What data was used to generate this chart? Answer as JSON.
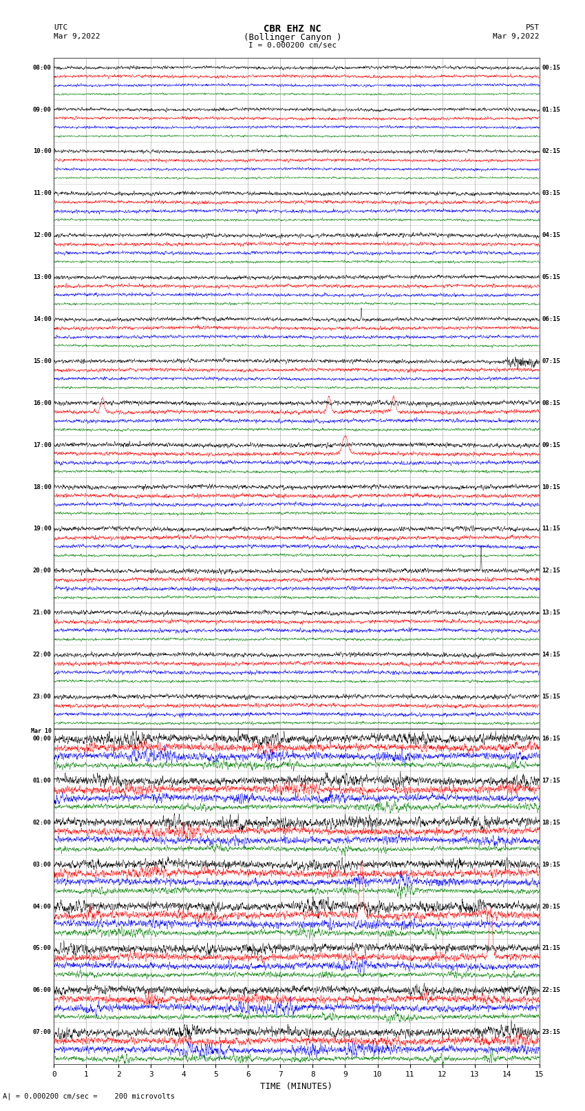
{
  "title_line1": "CBR EHZ NC",
  "title_line2": "(Bollinger Canyon )",
  "title_line3": "I = 0.000200 cm/sec",
  "left_header_line1": "UTC",
  "left_header_line2": "Mar 9,2022",
  "right_header_line1": "PST",
  "right_header_line2": "Mar 9,2022",
  "bottom_label": "TIME (MINUTES)",
  "bottom_note": "A| = 0.000200 cm/sec =    200 microvolts",
  "utc_labels": [
    "08:00",
    "09:00",
    "10:00",
    "11:00",
    "12:00",
    "13:00",
    "14:00",
    "15:00",
    "16:00",
    "17:00",
    "18:00",
    "19:00",
    "20:00",
    "21:00",
    "22:00",
    "23:00",
    "Mar 10\n00:00",
    "01:00",
    "02:00",
    "03:00",
    "04:00",
    "05:00",
    "06:00",
    "07:00"
  ],
  "pst_labels": [
    "00:15",
    "01:15",
    "02:15",
    "03:15",
    "04:15",
    "05:15",
    "06:15",
    "07:15",
    "08:15",
    "09:15",
    "10:15",
    "11:15",
    "12:15",
    "13:15",
    "14:15",
    "15:15",
    "16:15",
    "17:15",
    "18:15",
    "19:15",
    "20:15",
    "21:15",
    "22:15",
    "23:15"
  ],
  "n_rows": 24,
  "n_traces_per_row": 4,
  "x_min": 0,
  "x_max": 15,
  "x_ticks": [
    0,
    1,
    2,
    3,
    4,
    5,
    6,
    7,
    8,
    9,
    10,
    11,
    12,
    13,
    14,
    15
  ],
  "colors": [
    "black",
    "red",
    "blue",
    "green"
  ],
  "background": "white",
  "grid_color": "#999999",
  "fig_width": 8.5,
  "fig_height": 16.13,
  "dpi": 100
}
